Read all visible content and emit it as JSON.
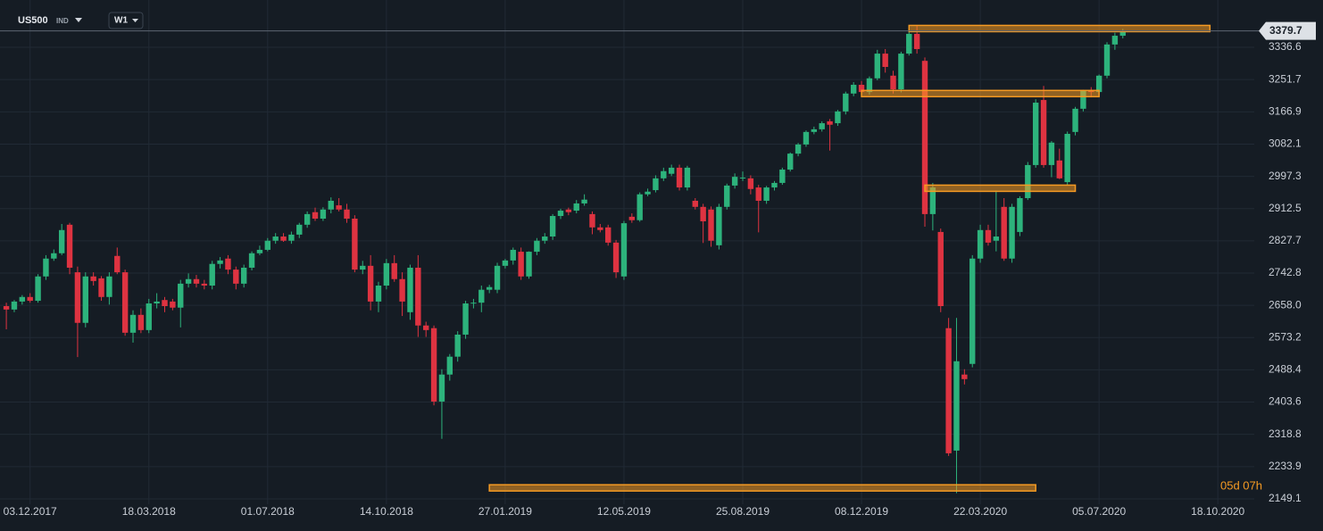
{
  "header": {
    "symbol": "US500",
    "market": "IND",
    "timeframe": "W1"
  },
  "chart_data": {
    "type": "candlestick",
    "open": [
      2656,
      2647,
      2668,
      2680,
      2670,
      2734,
      2781,
      2795,
      2870,
      2745,
      2612,
      2734,
      2729,
      2680,
      2788,
      2745,
      2586,
      2633,
      2593,
      2663,
      2672,
      2668,
      2652,
      2715,
      2727,
      2715,
      2710,
      2767,
      2781,
      2752,
      2715,
      2757,
      2795,
      2804,
      2828,
      2839,
      2828,
      2844,
      2870,
      2903,
      2886,
      2910,
      2921,
      2910,
      2886,
      2752,
      2762,
      2668,
      2710,
      2769,
      2727,
      2640,
      2757,
      2605,
      2598,
      2405,
      2476,
      2523,
      2581,
      2663,
      2665,
      2699,
      2699,
      2762,
      2776,
      2799,
      2734,
      2799,
      2828,
      2839,
      2893,
      2910,
      2907,
      2926,
      2898,
      2863,
      2863,
      2823,
      2734,
      2891,
      2882,
      2950,
      2961,
      2992,
      3004,
      3020,
      2968,
      2933,
      2917,
      2910,
      2816,
      2917,
      2973,
      2992,
      2992,
      2968,
      2933,
      2968,
      2980,
      3015,
      3057,
      3081,
      3114,
      3121,
      3142,
      3137,
      3168,
      3215,
      3238,
      3219,
      3255,
      3320,
      3262,
      3226,
      3320,
      3372,
      3301,
      2898,
      2851,
      2598,
      2276,
      2476,
      2504,
      2781,
      2856,
      2828,
      2917,
      2781,
      2851,
      2940,
      3027,
      3198,
      3027,
      3039,
      2982,
      3114,
      3175,
      3222,
      3219,
      3262,
      3344,
      3367
    ],
    "high": [
      2665,
      2672,
      2685,
      2690,
      2740,
      2790,
      2805,
      2872,
      2875,
      2760,
      2745,
      2745,
      2735,
      2745,
      2810,
      2752,
      2645,
      2650,
      2675,
      2690,
      2680,
      2675,
      2725,
      2742,
      2738,
      2725,
      2775,
      2785,
      2790,
      2760,
      2765,
      2800,
      2815,
      2835,
      2848,
      2848,
      2852,
      2875,
      2905,
      2915,
      2916,
      2942,
      2940,
      2925,
      2895,
      2775,
      2790,
      2720,
      2780,
      2790,
      2745,
      2765,
      2790,
      2615,
      2605,
      2490,
      2530,
      2590,
      2670,
      2675,
      2710,
      2712,
      2770,
      2780,
      2810,
      2810,
      2800,
      2835,
      2848,
      2898,
      2912,
      2915,
      2935,
      2950,
      2905,
      2872,
      2870,
      2830,
      2880,
      2900,
      2955,
      2965,
      3000,
      3020,
      3028,
      3028,
      3025,
      2940,
      2925,
      2918,
      2925,
      2978,
      3005,
      3010,
      3000,
      2975,
      2972,
      2985,
      3020,
      3060,
      3085,
      3118,
      3128,
      3142,
      3148,
      3172,
      3220,
      3245,
      3248,
      3260,
      3330,
      3332,
      3275,
      3325,
      3395,
      3395,
      3310,
      2980,
      2860,
      2625,
      2625,
      2490,
      2790,
      2870,
      2870,
      2960,
      2940,
      2925,
      2945,
      3035,
      3200,
      3235,
      3090,
      3070,
      3115,
      3180,
      3225,
      3232,
      3265,
      3350,
      3375,
      3385
    ],
    "low": [
      2595,
      2640,
      2660,
      2665,
      2665,
      2725,
      2775,
      2790,
      2740,
      2522,
      2600,
      2710,
      2670,
      2660,
      2740,
      2578,
      2560,
      2585,
      2585,
      2650,
      2640,
      2645,
      2600,
      2705,
      2705,
      2700,
      2700,
      2755,
      2740,
      2700,
      2705,
      2750,
      2790,
      2800,
      2820,
      2825,
      2820,
      2835,
      2862,
      2880,
      2880,
      2900,
      2905,
      2875,
      2745,
      2740,
      2645,
      2640,
      2700,
      2720,
      2630,
      2620,
      2575,
      2575,
      2395,
      2307,
      2460,
      2510,
      2570,
      2650,
      2640,
      2690,
      2690,
      2755,
      2765,
      2725,
      2728,
      2790,
      2820,
      2830,
      2885,
      2895,
      2900,
      2920,
      2845,
      2850,
      2815,
      2730,
      2725,
      2875,
      2878,
      2945,
      2955,
      2985,
      2998,
      2960,
      2960,
      2910,
      2822,
      2812,
      2805,
      2910,
      2965,
      2985,
      2950,
      2850,
      2925,
      2960,
      2975,
      3010,
      3050,
      3075,
      3108,
      3115,
      3065,
      3130,
      3160,
      3208,
      3215,
      3212,
      3250,
      3270,
      3215,
      3218,
      3315,
      3320,
      2865,
      2855,
      2640,
      2262,
      2164,
      2450,
      2495,
      2770,
      2815,
      2800,
      2775,
      2770,
      2840,
      2935,
      3020,
      3020,
      2995,
      2990,
      2975,
      3105,
      3168,
      3205,
      3212,
      3255,
      3330,
      3360
    ],
    "close": [
      2647,
      2668,
      2680,
      2670,
      2734,
      2781,
      2795,
      2856,
      2757,
      2612,
      2734,
      2722,
      2680,
      2734,
      2745,
      2586,
      2633,
      2593,
      2663,
      2668,
      2656,
      2652,
      2715,
      2727,
      2715,
      2710,
      2767,
      2776,
      2752,
      2715,
      2757,
      2795,
      2804,
      2828,
      2839,
      2828,
      2844,
      2870,
      2898,
      2886,
      2910,
      2933,
      2910,
      2886,
      2752,
      2762,
      2668,
      2710,
      2769,
      2727,
      2668,
      2757,
      2605,
      2593,
      2405,
      2476,
      2523,
      2581,
      2663,
      2665,
      2699,
      2706,
      2762,
      2776,
      2804,
      2734,
      2799,
      2828,
      2839,
      2893,
      2907,
      2903,
      2926,
      2936,
      2863,
      2856,
      2823,
      2745,
      2874,
      2882,
      2950,
      2957,
      2992,
      3011,
      3020,
      2968,
      3020,
      2917,
      2879,
      2828,
      2917,
      2973,
      2996,
      2994,
      2964,
      2933,
      2968,
      2980,
      3015,
      3057,
      3081,
      3114,
      3121,
      3137,
      3133,
      3168,
      3215,
      3238,
      3219,
      3255,
      3320,
      3285,
      3226,
      3320,
      3372,
      3332,
      2898,
      2968,
      2656,
      2269,
      2511,
      2464,
      2781,
      2856,
      2823,
      2839,
      2781,
      2917,
      2940,
      3027,
      3191,
      3027,
      3086,
      2992,
      3109,
      3175,
      3222,
      3219,
      3262,
      3344,
      3367,
      3379
    ],
    "up_color": "#2db37c",
    "down_color": "#de3341",
    "level_color": "#f59a23",
    "xlim": [
      -0.8,
      157.6
    ],
    "xticks": [
      {
        "value": 3,
        "label": "03.12.2017"
      },
      {
        "value": 18,
        "label": "18.03.2018"
      },
      {
        "value": 33,
        "label": "01.07.2018"
      },
      {
        "value": 48,
        "label": "14.10.2018"
      },
      {
        "value": 63,
        "label": "27.01.2019"
      },
      {
        "value": 78,
        "label": "12.05.2019"
      },
      {
        "value": 93,
        "label": "25.08.2019"
      },
      {
        "value": 108,
        "label": "08.12.2019"
      },
      {
        "value": 123,
        "label": "22.03.2020"
      },
      {
        "value": 138,
        "label": "05.07.2020"
      },
      {
        "value": 153,
        "label": "18.10.2020"
      }
    ],
    "ylim": [
      2135,
      3461
    ],
    "yticks": [
      3336.6,
      3251.7,
      3166.9,
      3082.1,
      2997.3,
      2912.5,
      2827.7,
      2742.8,
      {
        "value": 2658,
        "label": "2658.0"
      },
      2573.2,
      2488.4,
      2403.6,
      2318.8,
      2233.9,
      2149.1
    ],
    "grid": true,
    "last_price": 3379.7,
    "countdown": "05d 07h",
    "levels": [
      {
        "value": 3386,
        "from": 114,
        "to": 152
      },
      {
        "value": 3215,
        "from": 108,
        "to": 138
      },
      {
        "value": 2966,
        "from": 116,
        "to": 135
      },
      {
        "value": 2178,
        "from": 61,
        "to": 130
      }
    ]
  }
}
